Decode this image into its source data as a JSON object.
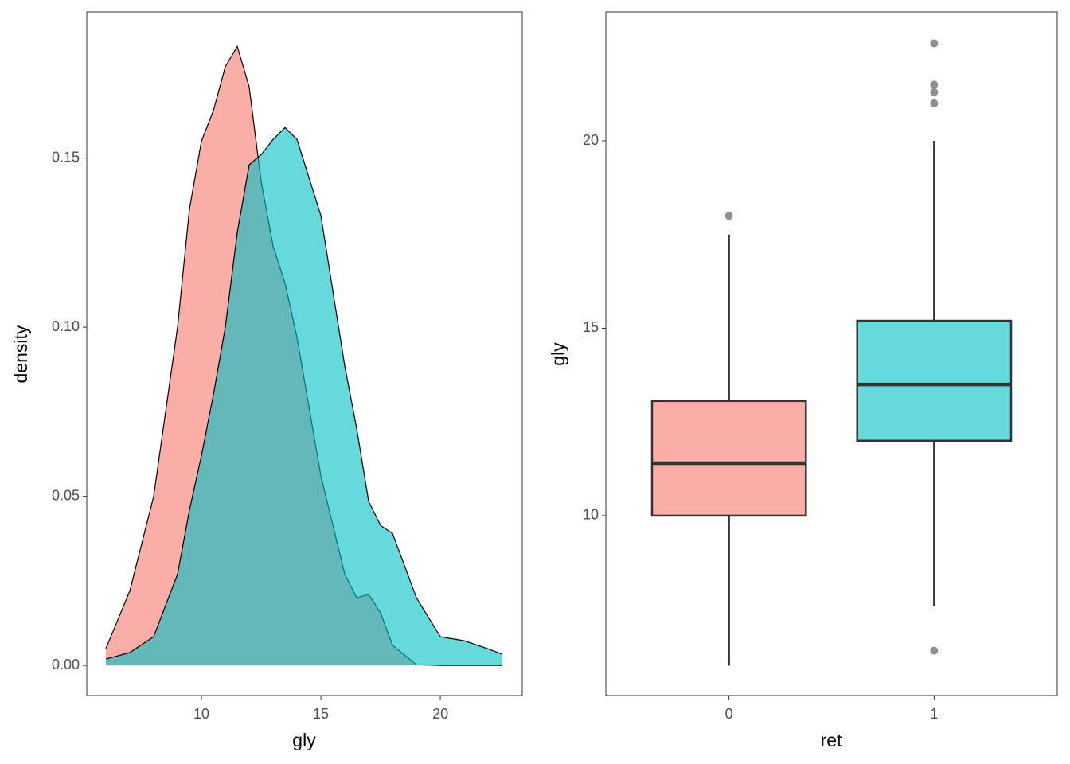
{
  "chart_data": [
    {
      "type": "density",
      "xlabel": "gly",
      "ylabel": "density",
      "x": [
        6,
        7,
        8,
        9,
        9.5,
        10,
        10.5,
        11,
        11.5,
        12,
        12.5,
        13,
        13.5,
        14,
        15,
        16,
        16.5,
        17,
        17.5,
        18,
        19,
        20,
        21,
        22,
        22.6
      ],
      "series": [
        {
          "color": "#F8766D",
          "values": [
            0.005,
            0.022,
            0.05,
            0.1,
            0.135,
            0.155,
            0.164,
            0.177,
            0.183,
            0.171,
            0.143,
            0.124,
            0.113,
            0.097,
            0.056,
            0.027,
            0.02,
            0.021,
            0.0155,
            0.006,
            0.0002,
            0,
            0,
            0,
            0
          ]
        },
        {
          "color": "#00BFC4",
          "values": [
            0.0019,
            0.0038,
            0.0085,
            0.027,
            0.046,
            0.062,
            0.08,
            0.1,
            0.128,
            0.148,
            0.151,
            0.1555,
            0.159,
            0.1555,
            0.133,
            0.0885,
            0.07,
            0.0485,
            0.0414,
            0.039,
            0.02,
            0.0085,
            0.0073,
            0.0049,
            0.0033
          ]
        }
      ],
      "xlim": [
        5.2,
        23.43
      ],
      "xticks": [
        10,
        15,
        20
      ],
      "ylim": [
        -0.0089,
        0.1932
      ],
      "yticks": [
        {
          "value": 0,
          "label": "0.00"
        },
        0.05,
        {
          "value": 0.1,
          "label": "0.10"
        },
        0.15
      ]
    },
    {
      "type": "box",
      "xlabel": "ret",
      "ylabel": "gly",
      "categories": [
        "0",
        "1"
      ],
      "boxes": [
        {
          "color": "#F8766D",
          "whisker_low": 6.0,
          "q1": 10,
          "median": 11.4,
          "q3": 13.06,
          "whisker_high": 17.5,
          "outliers": [
            18
          ]
        },
        {
          "color": "#00BFC4",
          "whisker_low": 7.6,
          "q1": 12,
          "median": 13.5,
          "q3": 15.2,
          "whisker_high": 20,
          "outliers": [
            6.4,
            21.0,
            21.3,
            21.5,
            22.6
          ]
        }
      ],
      "ylim": [
        5.2,
        23.44
      ],
      "yticks": [
        10,
        15,
        20
      ]
    }
  ]
}
